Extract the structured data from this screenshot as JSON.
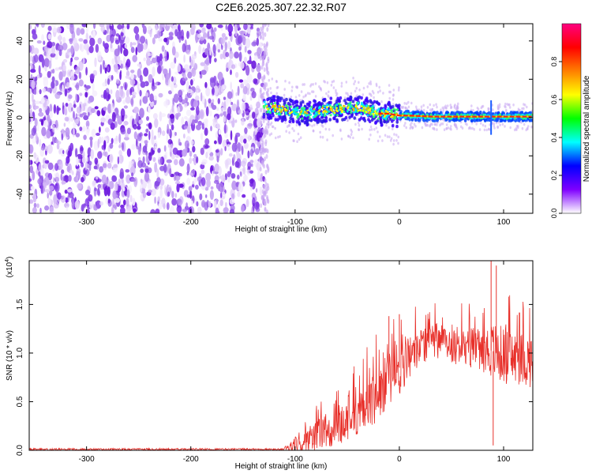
{
  "figure": {
    "title": "C2E6.2025.307.22.32.R07"
  },
  "chart_data": [
    {
      "type": "heatmap",
      "panel": "spectrogram",
      "xlabel": "Height of straight line (km)",
      "ylabel": "Frequency (Hz)",
      "xlim": [
        -355,
        128
      ],
      "ylim": [
        -50,
        49
      ],
      "xticks": [
        -300,
        -200,
        -100,
        0,
        100
      ],
      "yticks": [
        -40,
        -20,
        0,
        20,
        40
      ],
      "grid": false,
      "description_regions": [
        {
          "x_range": [
            -355,
            -130
          ],
          "f_range": [
            -50,
            49
          ],
          "level": "low-noise"
        },
        {
          "x_range": [
            -130,
            0
          ],
          "f_center": 4,
          "f_halfwidth": 7,
          "level": "signal"
        },
        {
          "x_range": [
            0,
            128
          ],
          "f_center": 0.5,
          "f_halfwidth": 2,
          "level": "strong-signal"
        }
      ],
      "trace": {
        "x": [
          -130,
          -120,
          -110,
          -100,
          -90,
          -80,
          -70,
          -60,
          -50,
          -40,
          -30,
          -20,
          -10,
          0,
          10,
          30,
          60,
          90,
          128
        ],
        "freq": [
          6,
          5,
          4,
          3,
          2,
          3,
          4,
          4,
          5,
          5,
          4,
          2,
          2,
          1,
          1,
          0.5,
          0.5,
          0.5,
          0.5
        ]
      },
      "colorbar": {
        "label": "Normalized spectral amplitude",
        "range": [
          0,
          1
        ],
        "ticks": [
          0.0,
          0.2,
          0.4,
          0.6,
          0.8
        ],
        "tick_labels": [
          "0.0",
          "0.2",
          "0.4",
          "0.6",
          "0.8"
        ],
        "colors": [
          "#ffffff",
          "#7f00ff",
          "#0000ff",
          "#00ffff",
          "#00ff00",
          "#ffff00",
          "#ff7f00",
          "#ff0000",
          "#ff0080"
        ]
      }
    },
    {
      "type": "line",
      "panel": "snr",
      "xlabel": "Height of straight line (km)",
      "ylabel": "SNR (10 * v/v)",
      "y_multiplier_label": "(x10",
      "y_multiplier_exp": "4",
      "y_multiplier_close": ")",
      "xlim": [
        -355,
        128
      ],
      "ylim": [
        0,
        1.95
      ],
      "xticks": [
        -300,
        -200,
        -100,
        0,
        100
      ],
      "yticks": [
        0.0,
        0.5,
        1.0,
        1.5
      ],
      "ytick_labels": [
        "0.0",
        "0.5",
        "1.0",
        "1.5"
      ],
      "grid": false,
      "color": "#e8302a",
      "envelope": {
        "x": [
          -355,
          -110,
          -100,
          -90,
          -80,
          -70,
          -60,
          -50,
          -40,
          -30,
          -20,
          -10,
          0,
          10,
          20,
          30,
          40,
          50,
          60,
          70,
          80,
          90,
          100,
          110,
          128
        ],
        "mean": [
          0.01,
          0.01,
          0.06,
          0.1,
          0.15,
          0.2,
          0.25,
          0.3,
          0.38,
          0.48,
          0.6,
          0.72,
          0.85,
          0.98,
          1.08,
          1.12,
          1.12,
          1.1,
          1.08,
          1.06,
          1.05,
          1.02,
          0.98,
          0.95,
          0.92
        ],
        "spread": [
          0.01,
          0.01,
          0.08,
          0.12,
          0.16,
          0.18,
          0.2,
          0.22,
          0.25,
          0.28,
          0.3,
          0.3,
          0.28,
          0.25,
          0.2,
          0.18,
          0.18,
          0.2,
          0.22,
          0.22,
          0.24,
          0.3,
          0.3,
          0.28,
          0.28
        ]
      },
      "spikes": [
        {
          "x": 88,
          "y": 1.95
        },
        {
          "x": 93,
          "y": 1.9
        },
        {
          "x": 90,
          "y": 0.05
        },
        {
          "x": -10,
          "y": 1.38
        },
        {
          "x": 0,
          "y": 1.4
        },
        {
          "x": 35,
          "y": 1.3
        }
      ]
    }
  ]
}
